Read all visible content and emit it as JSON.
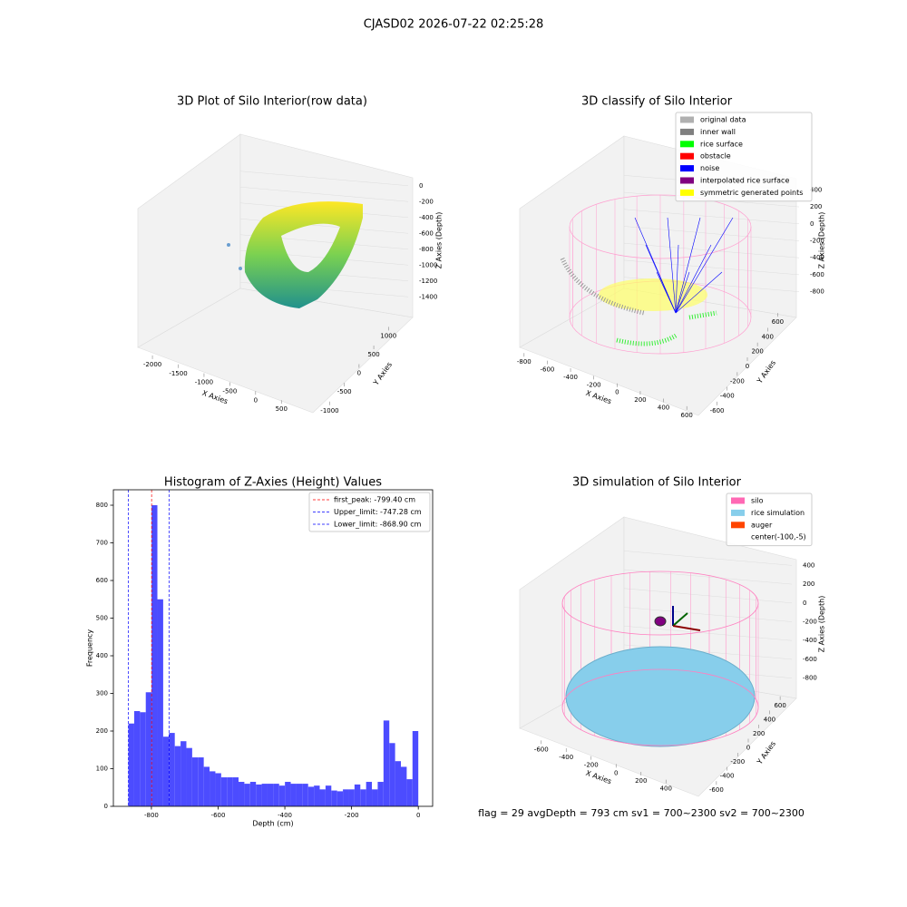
{
  "figure": {
    "title": "CJASD02 2026-07-22 02:25:28",
    "footer": "flag = 29  avgDepth = 793 cm  sv1 = 700~2300  sv2 = 700~2300"
  },
  "chart_data": [
    {
      "type": "scatter3d",
      "title": "3D Plot of Silo Interior(row data)",
      "xlabel": "X Axies",
      "ylabel": "Y Axies",
      "zlabel": "Z Axies (Depth)",
      "xlim": [
        -2300,
        900
      ],
      "xticks": [
        -2000,
        -1500,
        -1000,
        -500,
        0,
        500
      ],
      "ylim": [
        -1200,
        1300
      ],
      "yticks": [
        -1000,
        -500,
        0,
        500,
        1000
      ],
      "zlim": [
        -1500,
        100
      ],
      "zticks": [
        -1400,
        -1200,
        -1000,
        -800,
        -600,
        -400,
        -200,
        0
      ]
    },
    {
      "type": "scatter3d",
      "title": "3D classify of Silo Interior",
      "xlabel": "X Axies",
      "ylabel": "Y Axies",
      "zlabel": "Z Axies (Depth)",
      "xlim": [
        -900,
        700
      ],
      "xticks": [
        -800,
        -600,
        -400,
        -200,
        0,
        200,
        400,
        600
      ],
      "ylim": [
        -700,
        700
      ],
      "yticks": [
        -600,
        -400,
        -200,
        0,
        200,
        400,
        600
      ],
      "zlim": [
        -900,
        500
      ],
      "zticks": [
        -800,
        -600,
        -400,
        -200,
        0,
        200,
        400
      ],
      "legend": [
        {
          "name": "original data",
          "color": "#b0b0b0"
        },
        {
          "name": "inner wall",
          "color": "#808080"
        },
        {
          "name": "rice surface",
          "color": "#00ff00"
        },
        {
          "name": "obstacle",
          "color": "#ff0000"
        },
        {
          "name": "noise",
          "color": "#0000ff"
        },
        {
          "name": "interpolated rice surface",
          "color": "#800080"
        },
        {
          "name": "symmetric generated points",
          "color": "#ffff00"
        }
      ]
    },
    {
      "type": "histogram",
      "title": "Histogram of Z-Axies (Height) Values",
      "xlabel": "Depth (cm)",
      "ylabel": "Frequency",
      "color": "#4c4cff",
      "bins": [
        -869.0,
        -851.62,
        -834.24,
        -816.86,
        -799.48,
        -782.1,
        -764.72,
        -747.34,
        -729.96,
        -712.58,
        -695.2,
        -677.82,
        -660.44,
        -643.06,
        -625.68,
        -608.3,
        -590.92,
        -573.54,
        -556.16,
        -538.78,
        -521.4,
        -504.02,
        -486.64,
        -469.26,
        -451.88,
        -434.5,
        -417.12,
        -399.74,
        -382.36,
        -364.98,
        -347.6,
        -330.22,
        -312.84,
        -295.46,
        -278.08,
        -260.7,
        -243.32,
        -225.94,
        -208.56,
        -191.18,
        -173.8,
        -156.42,
        -139.04,
        -121.66,
        -104.28,
        -86.9,
        -69.52,
        -52.14,
        -34.76,
        -17.38,
        0
      ],
      "values": [
        220,
        253,
        250,
        303,
        800,
        550,
        185,
        195,
        160,
        173,
        155,
        130,
        130,
        105,
        93,
        88,
        77,
        77,
        77,
        65,
        60,
        65,
        58,
        60,
        60,
        60,
        55,
        65,
        60,
        60,
        60,
        52,
        55,
        45,
        55,
        42,
        40,
        45,
        45,
        58,
        45,
        65,
        45,
        65,
        228,
        168,
        120,
        105,
        72,
        200
      ],
      "xlim": [
        -914,
        43
      ],
      "xticks": [
        -800,
        -600,
        -400,
        -200,
        0
      ],
      "ylim": [
        0,
        841
      ],
      "yticks": [
        0,
        100,
        200,
        300,
        400,
        500,
        600,
        700,
        800
      ],
      "lines": [
        {
          "name": "first_peak: -799.40 cm",
          "value": -799.4,
          "color": "#ff0000"
        },
        {
          "name": "Upper_limit: -747.28 cm",
          "value": -747.28,
          "color": "#0000ff"
        },
        {
          "name": "Lower_limit: -868.90 cm",
          "value": -868.9,
          "color": "#0000ff"
        }
      ]
    },
    {
      "type": "simulation3d",
      "title": "3D simulation of Silo Interior",
      "xlabel": "X Axies",
      "ylabel": "Y Axies",
      "zlabel": "Z Axies (Depth)",
      "xlim": [
        -700,
        500
      ],
      "xticks": [
        -600,
        -400,
        -200,
        0,
        200,
        400
      ],
      "ylim": [
        -700,
        700
      ],
      "yticks": [
        -600,
        -400,
        -200,
        0,
        200,
        400,
        600
      ],
      "zlim": [
        -900,
        500
      ],
      "zticks": [
        -800,
        -600,
        -400,
        -200,
        0,
        200,
        400
      ],
      "legend": [
        {
          "name": "silo",
          "color": "#ff69b4"
        },
        {
          "name": "rice simulation",
          "color": "#87ceeb"
        },
        {
          "name": "auger",
          "color": "#ff4500"
        },
        {
          "name": "center(-100,-5)"
        }
      ]
    }
  ]
}
